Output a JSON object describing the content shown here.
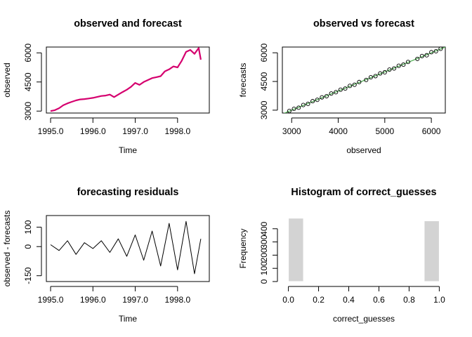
{
  "chart_data": [
    {
      "type": "line",
      "title": "observed and forecast",
      "xlabel": "Time",
      "ylabel": "observed",
      "xlim": [
        1995.0,
        1998.6
      ],
      "ylim": [
        2900,
        6300
      ],
      "x_ticks": [
        "1995.0",
        "1996.0",
        "1997.0",
        "1998.0"
      ],
      "y_ticks": [
        "3000",
        "4500",
        "6000"
      ],
      "series": [
        {
          "color": "#d5006e",
          "x": [
            1995.0,
            1995.1,
            1995.2,
            1995.3,
            1995.4,
            1995.5,
            1995.6,
            1995.7,
            1995.8,
            1995.9,
            1996.0,
            1996.1,
            1996.2,
            1996.3,
            1996.4,
            1996.5,
            1996.6,
            1996.7,
            1996.8,
            1996.9,
            1997.0,
            1997.1,
            1997.2,
            1997.3,
            1997.4,
            1997.5,
            1997.6,
            1997.7,
            1997.8,
            1997.9,
            1998.0,
            1998.1,
            1998.2,
            1998.3,
            1998.4,
            1998.5,
            1998.55
          ],
          "values": [
            3000,
            3050,
            3150,
            3300,
            3400,
            3480,
            3550,
            3600,
            3620,
            3650,
            3680,
            3730,
            3780,
            3800,
            3850,
            3720,
            3850,
            3980,
            4100,
            4250,
            4450,
            4350,
            4500,
            4600,
            4700,
            4750,
            4800,
            5050,
            5150,
            5300,
            5250,
            5600,
            6050,
            6150,
            5950,
            6250,
            5650
          ]
        }
      ]
    },
    {
      "type": "scatter",
      "title": "observed vs forecast",
      "xlabel": "observed",
      "ylabel": "forecasts",
      "xlim": [
        2800,
        6300
      ],
      "ylim": [
        2850,
        6300
      ],
      "x_ticks": [
        "3000",
        "4000",
        "5000",
        "6000"
      ],
      "y_ticks": [
        "3000",
        "4500",
        "6000"
      ],
      "reference_line": {
        "slope": 1,
        "intercept": 0,
        "color": "#4caf50"
      },
      "series": [
        {
          "x": [
            2950,
            3050,
            3150,
            3250,
            3350,
            3450,
            3550,
            3650,
            3750,
            3850,
            3950,
            4050,
            4150,
            4250,
            4350,
            4450,
            4600,
            4700,
            4800,
            4900,
            5000,
            5100,
            5200,
            5300,
            5400,
            5500,
            5700,
            5800,
            5900,
            6000,
            6100,
            6200
          ],
          "values": [
            2960,
            3070,
            3130,
            3270,
            3330,
            3470,
            3540,
            3670,
            3730,
            3870,
            3940,
            4070,
            4130,
            4270,
            4330,
            4470,
            4580,
            4720,
            4780,
            4920,
            4980,
            5120,
            5180,
            5320,
            5380,
            5520,
            5680,
            5830,
            5870,
            6030,
            6080,
            6210
          ]
        }
      ]
    },
    {
      "type": "line",
      "title": "forecasting residuals",
      "xlabel": "Time",
      "ylabel": "observed - forecasts",
      "xlim": [
        1995.0,
        1998.6
      ],
      "ylim": [
        -180,
        160
      ],
      "x_ticks": [
        "1995.0",
        "1996.0",
        "1997.0",
        "1998.0"
      ],
      "y_ticks": [
        "-150",
        "0",
        "100"
      ],
      "series": [
        {
          "color": "#000000",
          "x": [
            1995.0,
            1995.2,
            1995.4,
            1995.6,
            1995.8,
            1996.0,
            1996.2,
            1996.4,
            1996.6,
            1996.8,
            1997.0,
            1997.2,
            1997.4,
            1997.6,
            1997.8,
            1998.0,
            1998.2,
            1998.4,
            1998.55
          ],
          "values": [
            10,
            -20,
            30,
            -40,
            20,
            -10,
            30,
            -30,
            40,
            -50,
            60,
            -70,
            80,
            -100,
            120,
            -120,
            130,
            -140,
            40
          ]
        }
      ]
    },
    {
      "type": "bar",
      "title": "Histogram of correct_guesses",
      "xlabel": "correct_guesses",
      "ylabel": "Frequency",
      "xlim": [
        0.0,
        1.0
      ],
      "ylim": [
        0,
        500
      ],
      "x_ticks": [
        "0.0",
        "0.2",
        "0.4",
        "0.6",
        "0.8",
        "1.0"
      ],
      "y_ticks": [
        "0",
        "100",
        "200",
        "300",
        "400"
      ],
      "bins": [
        [
          0.0,
          0.1
        ],
        [
          0.1,
          0.2
        ],
        [
          0.2,
          0.3
        ],
        [
          0.3,
          0.4
        ],
        [
          0.4,
          0.5
        ],
        [
          0.5,
          0.6
        ],
        [
          0.6,
          0.7
        ],
        [
          0.7,
          0.8
        ],
        [
          0.8,
          0.9
        ],
        [
          0.9,
          1.0
        ]
      ],
      "values": [
        480,
        0,
        0,
        0,
        0,
        0,
        0,
        0,
        0,
        460
      ],
      "color": "#d3d3d3"
    }
  ]
}
